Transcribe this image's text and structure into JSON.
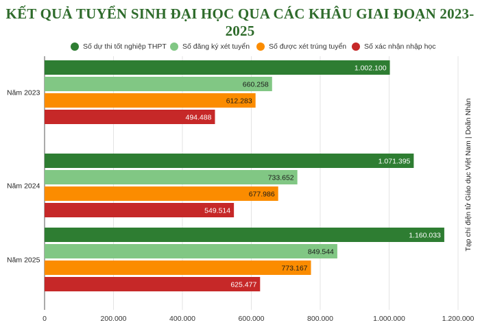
{
  "title": "KẾT QUẢ TUYỂN SINH ĐẠI HỌC QUA CÁC KHÂU GIAI ĐOẠN 2023-2025",
  "source_note": "Tạp chí điện tử Giáo dục Việt Nam | Doãn Nhàn",
  "chart_data": {
    "type": "bar",
    "orientation": "horizontal",
    "title": "KẾT QUẢ TUYỂN SINH ĐẠI HỌC QUA CÁC KHÂU GIAI ĐOẠN 2023-2025",
    "categories": [
      "Năm 2023",
      "Năm 2024",
      "Năm 2025"
    ],
    "series": [
      {
        "name": "Số dự thi tốt nghiệp THPT",
        "color": "#2e7d32",
        "values": [
          1002100,
          1071395,
          1160033
        ],
        "labels": [
          "1.002.100",
          "1.071.395",
          "1.160.033"
        ]
      },
      {
        "name": "Số đăng ký xét tuyển",
        "color": "#81c784",
        "values": [
          660258,
          733652,
          849544
        ],
        "labels": [
          "660.258",
          "733.652",
          "849.544"
        ]
      },
      {
        "name": "Số được xét trúng tuyển",
        "color": "#fb8c00",
        "values": [
          612283,
          677986,
          773167
        ],
        "labels": [
          "612.283",
          "677.986",
          "773.167"
        ]
      },
      {
        "name": "Số xác nhận nhập học",
        "color": "#c62828",
        "values": [
          494488,
          549514,
          625477
        ],
        "labels": [
          "494.488",
          "549.514",
          "625.477"
        ]
      }
    ],
    "xlim": [
      0,
      1200000
    ],
    "xticks": [
      0,
      200000,
      400000,
      600000,
      800000,
      1000000,
      1200000
    ],
    "xtick_labels": [
      "0",
      "200.000",
      "400.000",
      "600.000",
      "800.000",
      "1.000.000",
      "1.200.000"
    ],
    "grid": true,
    "legend_position": "top"
  }
}
